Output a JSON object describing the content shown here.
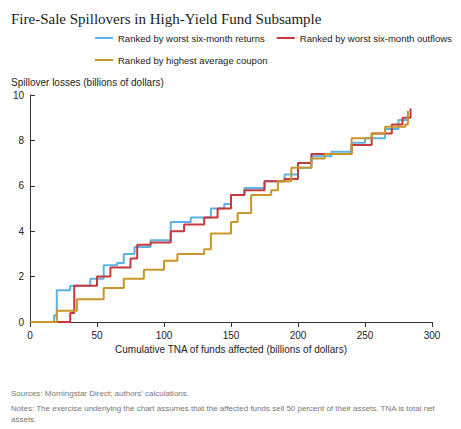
{
  "chart_data": {
    "type": "line",
    "title": "Fire-Sale Spillovers in High-Yield Fund Subsample",
    "y_label": "Spillover losses (billions of dollars)",
    "x_label": "Cumulative TNA of funds affected (billions of dollars)",
    "source": "Sources: Morningstar Direct; authors’ calculations.",
    "notes": "Notes: The exercise underlying the chart assumes that the affected funds sell 50 percent of their assets. TNA is total net assets.",
    "line_style": "step",
    "grid": false,
    "xlim": [
      0,
      300
    ],
    "xticks": [
      0,
      50,
      100,
      150,
      200,
      250,
      300
    ],
    "ylim": [
      0,
      10
    ],
    "yticks": [
      0,
      2,
      4,
      6,
      8,
      10
    ],
    "series": [
      {
        "name": "Ranked by worst six-month returns",
        "color": "#5ab4e5",
        "x": [
          0,
          18,
          20,
          30,
          45,
          55,
          65,
          70,
          78,
          90,
          105,
          120,
          135,
          145,
          150,
          160,
          175,
          190,
          200,
          210,
          225,
          240,
          250,
          265,
          275,
          282
        ],
        "values": [
          0,
          0.3,
          1.4,
          1.6,
          1.9,
          2.5,
          2.6,
          3.0,
          3.3,
          3.6,
          4.4,
          4.6,
          5.0,
          5.2,
          5.6,
          5.9,
          6.2,
          6.5,
          6.8,
          7.3,
          7.5,
          7.9,
          8.1,
          8.5,
          8.9,
          9.3
        ]
      },
      {
        "name": "Ranked by worst six-month outflows",
        "color": "#c8383d",
        "x": [
          0,
          30,
          33,
          50,
          60,
          75,
          80,
          90,
          105,
          115,
          130,
          140,
          150,
          160,
          175,
          190,
          200,
          210,
          225,
          240,
          255,
          270,
          278,
          284
        ],
        "values": [
          0,
          0.4,
          1.6,
          2.0,
          2.4,
          2.8,
          3.4,
          3.5,
          4.0,
          4.3,
          4.6,
          5.0,
          5.6,
          5.8,
          6.2,
          6.3,
          7.0,
          7.4,
          7.4,
          7.8,
          8.3,
          8.7,
          9.0,
          9.4
        ]
      },
      {
        "name": "Ranked by highest average coupon",
        "color": "#c9962a",
        "x": [
          0,
          20,
          35,
          55,
          70,
          85,
          100,
          110,
          130,
          135,
          150,
          155,
          165,
          180,
          185,
          195,
          210,
          220,
          240,
          255,
          265,
          280,
          282
        ],
        "values": [
          0,
          0.5,
          1.0,
          1.5,
          1.9,
          2.3,
          2.7,
          3.0,
          3.2,
          3.9,
          4.4,
          4.8,
          5.6,
          5.8,
          6.2,
          6.8,
          7.2,
          7.4,
          8.1,
          8.3,
          8.6,
          8.7,
          9.3
        ]
      }
    ]
  }
}
